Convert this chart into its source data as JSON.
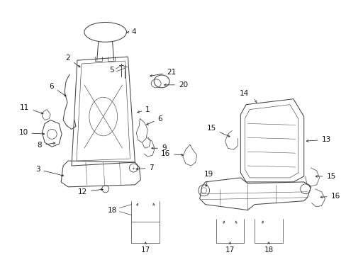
{
  "bg_color": "#ffffff",
  "line_color": "#444444",
  "text_color": "#111111",
  "figsize": [
    4.89,
    3.6
  ],
  "dpi": 100,
  "lw": 0.75,
  "fs": 7.5
}
